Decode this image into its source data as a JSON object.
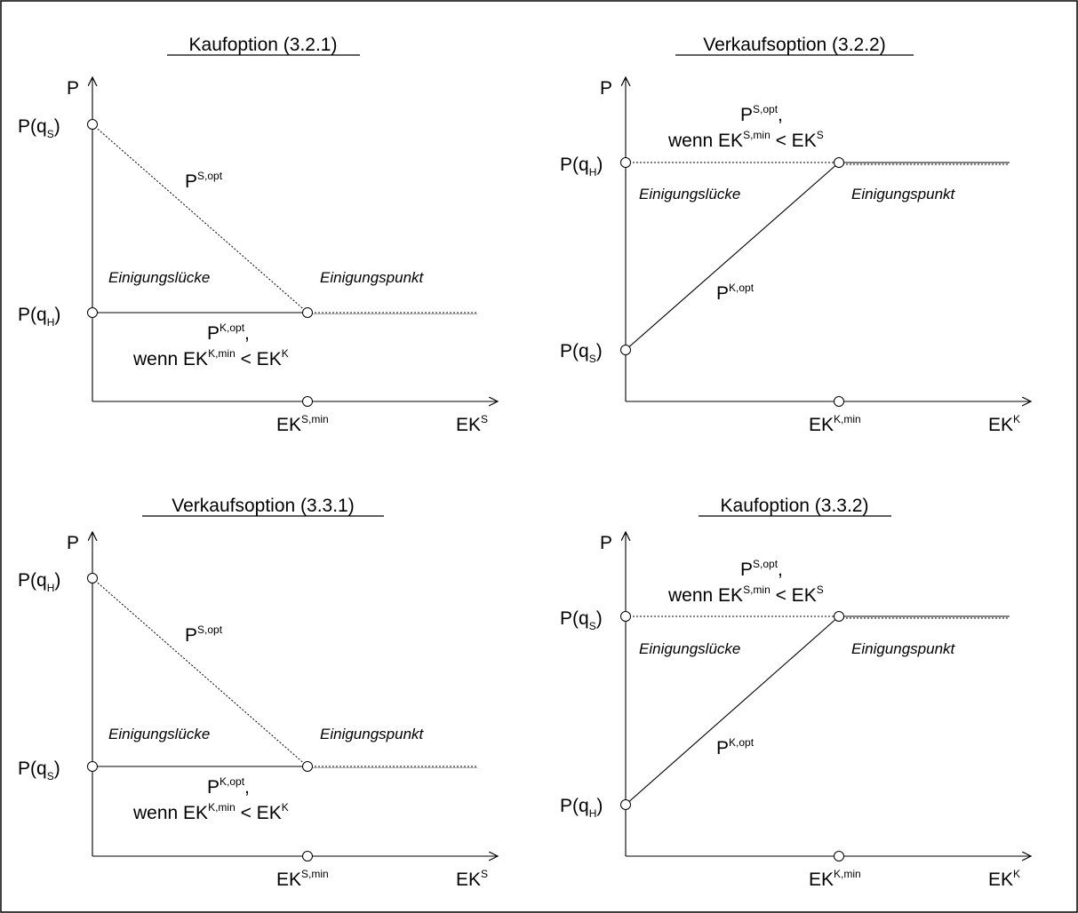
{
  "panels": [
    {
      "title": "Kaufoption (3.2.1)",
      "y_axis": "P",
      "x_axis": {
        "base": "EK",
        "sup": "S"
      },
      "x_point": {
        "base": "EK",
        "sup": "S,min"
      },
      "top_point": {
        "base": "P(q",
        "sub": "S",
        "close": ")"
      },
      "bottom_point": {
        "base": "P(q",
        "sub": "H",
        "close": ")"
      },
      "diag_label": {
        "base": "P",
        "sup": "S,opt"
      },
      "horiz_label": {
        "base": "P",
        "sup": "K,opt",
        "tail": ","
      },
      "cond": {
        "a": "wenn EK",
        "a_sup": "K,min",
        "mid": " < EK",
        "b_sup": "K"
      },
      "gap_label": "Einigungslücke",
      "point_label": "Einigungspunkt"
    },
    {
      "title": "Verkaufsoption (3.2.2)",
      "y_axis": "P",
      "x_axis": {
        "base": "EK",
        "sup": "K"
      },
      "x_point": {
        "base": "EK",
        "sup": "K,min"
      },
      "top_point": {
        "base": "P(q",
        "sub": "H",
        "close": ")"
      },
      "bottom_point": {
        "base": "P(q",
        "sub": "S",
        "close": ")"
      },
      "diag_label": {
        "base": "P",
        "sup": "K,opt"
      },
      "horiz_label": {
        "base": "P",
        "sup": "S,opt",
        "tail": ","
      },
      "cond": {
        "a": "wenn EK",
        "a_sup": "S,min",
        "mid": " < EK",
        "b_sup": "S"
      },
      "gap_label": "Einigungslücke",
      "point_label": "Einigungspunkt"
    },
    {
      "title": "Verkaufsoption (3.3.1)",
      "y_axis": "P",
      "x_axis": {
        "base": "EK",
        "sup": "S"
      },
      "x_point": {
        "base": "EK",
        "sup": "S,min"
      },
      "top_point": {
        "base": "P(q",
        "sub": "H",
        "close": ")"
      },
      "bottom_point": {
        "base": "P(q",
        "sub": "S",
        "close": ")"
      },
      "diag_label": {
        "base": "P",
        "sup": "S,opt"
      },
      "horiz_label": {
        "base": "P",
        "sup": "K,opt",
        "tail": ","
      },
      "cond": {
        "a": "wenn EK",
        "a_sup": "K,min",
        "mid": " < EK",
        "b_sup": "K"
      },
      "gap_label": "Einigungslücke",
      "point_label": "Einigungspunkt"
    },
    {
      "title": "Kaufoption (3.3.2)",
      "y_axis": "P",
      "x_axis": {
        "base": "EK",
        "sup": "K"
      },
      "x_point": {
        "base": "EK",
        "sup": "K,min"
      },
      "top_point": {
        "base": "P(q",
        "sub": "S",
        "close": ")"
      },
      "bottom_point": {
        "base": "P(q",
        "sub": "H",
        "close": ")"
      },
      "diag_label": {
        "base": "P",
        "sup": "K,opt"
      },
      "horiz_label": {
        "base": "P",
        "sup": "S,opt",
        "tail": ","
      },
      "cond": {
        "a": "wenn EK",
        "a_sup": "S,min",
        "mid": " < EK",
        "b_sup": "S"
      },
      "gap_label": "Einigungslücke",
      "point_label": "Einigungspunkt"
    }
  ]
}
